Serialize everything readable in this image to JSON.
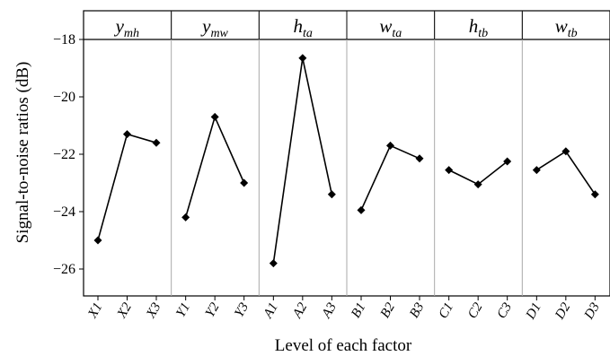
{
  "chart_data": {
    "type": "line",
    "xlabel": "Level of each factor",
    "ylabel": "Signal-to-noise ratios (dB)",
    "ylim": [
      -27,
      -17
    ],
    "yticks": [
      -18,
      -20,
      -22,
      -24,
      -26
    ],
    "grid": false,
    "marker": "diamond",
    "reference_line": -18,
    "facets": [
      {
        "title": "y",
        "subscript": "mh",
        "categories": [
          "X1",
          "X2",
          "X3"
        ],
        "values": [
          -25.0,
          -21.3,
          -21.6
        ]
      },
      {
        "title": "y",
        "subscript": "mw",
        "categories": [
          "Y1",
          "Y2",
          "Y3"
        ],
        "values": [
          -24.2,
          -20.7,
          -23.0
        ]
      },
      {
        "title": "h",
        "subscript": "ta",
        "categories": [
          "A1",
          "A2",
          "A3"
        ],
        "values": [
          -25.8,
          -18.65,
          -23.4
        ]
      },
      {
        "title": "w",
        "subscript": "ta",
        "categories": [
          "B1",
          "B2",
          "B3"
        ],
        "values": [
          -23.95,
          -21.7,
          -22.15
        ]
      },
      {
        "title": "h",
        "subscript": "tb",
        "categories": [
          "C1",
          "C2",
          "C3"
        ],
        "values": [
          -22.55,
          -23.05,
          -22.25
        ]
      },
      {
        "title": "w",
        "subscript": "tb",
        "categories": [
          "D1",
          "D2",
          "D3"
        ],
        "values": [
          -22.55,
          -21.9,
          -23.4
        ]
      }
    ]
  }
}
